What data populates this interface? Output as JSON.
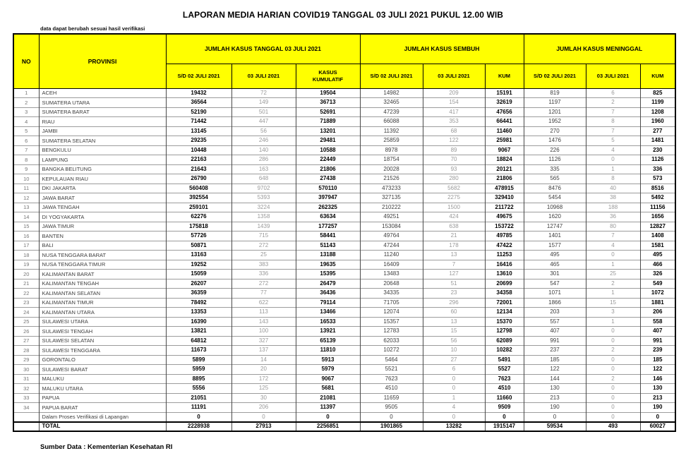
{
  "title": "LAPORAN MEDIA HARIAN COVID19 TANGGAL 03 JULI 2021 PUKUL 12.00 WIB",
  "note": "data dapat berubah sesuai hasil verifikasi",
  "source": "Sumber Data : Kementerian Kesehatan RI",
  "colors": {
    "header_bg": "#FFFF00",
    "border": "#000000",
    "day_text": "#999999"
  },
  "table": {
    "header": {
      "no": "NO",
      "provinsi": "PROVINSI",
      "group_kasus": "JUMLAH KASUS TANGGAL 03 JULI 2021",
      "group_sembuh": "JUMLAH KASUS SEMBUH",
      "group_meninggal": "JUMLAH KASUS MENINGGAL",
      "sub_sd": "S/D 02 JULI 2021",
      "sub_03": "03 JULI 2021",
      "sub_kum_kasus": "KASUS KUMULATIF",
      "sub_kum": "KUM"
    },
    "rows": [
      [
        1,
        "ACEH",
        19432,
        72,
        19504,
        14982,
        209,
        15191,
        819,
        6,
        825
      ],
      [
        2,
        "SUMATERA UTARA",
        36564,
        149,
        36713,
        32465,
        154,
        32619,
        1197,
        2,
        1199
      ],
      [
        3,
        "SUMATERA BARAT",
        52190,
        501,
        52691,
        47239,
        417,
        47656,
        1201,
        7,
        1208
      ],
      [
        4,
        "RIAU",
        71442,
        447,
        71889,
        66088,
        353,
        66441,
        1952,
        8,
        1960
      ],
      [
        5,
        "JAMBI",
        13145,
        56,
        13201,
        11392,
        68,
        11460,
        270,
        7,
        277
      ],
      [
        6,
        "SUMATERA SELATAN",
        29235,
        246,
        29481,
        25859,
        122,
        25981,
        1476,
        5,
        1481
      ],
      [
        7,
        "BENGKULU",
        10448,
        140,
        10588,
        8978,
        89,
        9067,
        226,
        4,
        230
      ],
      [
        8,
        "LAMPUNG",
        22163,
        286,
        22449,
        18754,
        70,
        18824,
        1126,
        0,
        1126
      ],
      [
        9,
        "BANGKA BELITUNG",
        21643,
        163,
        21806,
        20028,
        93,
        20121,
        335,
        1,
        336
      ],
      [
        10,
        "KEPULAUAN RIAU",
        26790,
        648,
        27438,
        21526,
        280,
        21806,
        565,
        8,
        573
      ],
      [
        11,
        "DKI JAKARTA",
        560408,
        9702,
        570110,
        473233,
        5682,
        478915,
        8476,
        40,
        8516
      ],
      [
        12,
        "JAWA BARAT",
        392554,
        5393,
        397947,
        327135,
        2275,
        329410,
        5454,
        38,
        5492
      ],
      [
        13,
        "JAWA TENGAH",
        259101,
        3224,
        262325,
        210222,
        1500,
        211722,
        10968,
        188,
        11156
      ],
      [
        14,
        "DI YOGYAKARTA",
        62276,
        1358,
        63634,
        49251,
        424,
        49675,
        1620,
        36,
        1656
      ],
      [
        15,
        "JAWA TIMUR",
        175818,
        1439,
        177257,
        153084,
        638,
        153722,
        12747,
        80,
        12827
      ],
      [
        16,
        "BANTEN",
        57726,
        715,
        58441,
        49764,
        21,
        49785,
        1401,
        7,
        1408
      ],
      [
        17,
        "BALI",
        50871,
        272,
        51143,
        47244,
        178,
        47422,
        1577,
        4,
        1581
      ],
      [
        18,
        "NUSA TENGGARA BARAT",
        13163,
        25,
        13188,
        11240,
        13,
        11253,
        495,
        0,
        495
      ],
      [
        19,
        "NUSA TENGGARA TIMUR",
        19252,
        383,
        19635,
        16409,
        7,
        16416,
        465,
        1,
        466
      ],
      [
        20,
        "KALIMANTAN BARAT",
        15059,
        336,
        15395,
        13483,
        127,
        13610,
        301,
        25,
        326
      ],
      [
        21,
        "KALIMANTAN TENGAH",
        26207,
        272,
        26479,
        20648,
        51,
        20699,
        547,
        2,
        549
      ],
      [
        22,
        "KALIMANTAN SELATAN",
        36359,
        77,
        36436,
        34335,
        23,
        34358,
        1071,
        1,
        1072
      ],
      [
        23,
        "KALIMANTAN TIMUR",
        78492,
        622,
        79114,
        71705,
        296,
        72001,
        1866,
        15,
        1881
      ],
      [
        24,
        "KALIMANTAN UTARA",
        13353,
        113,
        13466,
        12074,
        60,
        12134,
        203,
        3,
        206
      ],
      [
        25,
        "SULAWESI UTARA",
        16390,
        143,
        16533,
        15357,
        13,
        15370,
        557,
        1,
        558
      ],
      [
        26,
        "SULAWESI TENGAH",
        13821,
        100,
        13921,
        12783,
        15,
        12798,
        407,
        0,
        407
      ],
      [
        27,
        "SULAWESI SELATAN",
        64812,
        327,
        65139,
        62033,
        56,
        62089,
        991,
        0,
        991
      ],
      [
        28,
        "SULAWESI TENGGARA",
        11673,
        137,
        11810,
        10272,
        10,
        10282,
        237,
        2,
        239
      ],
      [
        29,
        "GORONTALO",
        5899,
        14,
        5913,
        5464,
        27,
        5491,
        185,
        0,
        185
      ],
      [
        30,
        "SULAWESI BARAT",
        5959,
        20,
        5979,
        5521,
        6,
        5527,
        122,
        0,
        122
      ],
      [
        31,
        "MALUKU",
        8895,
        172,
        9067,
        7623,
        0,
        7623,
        144,
        2,
        146
      ],
      [
        32,
        "MALUKU UTARA",
        5556,
        125,
        5681,
        4510,
        0,
        4510,
        130,
        0,
        130
      ],
      [
        33,
        "PAPUA",
        21051,
        30,
        21081,
        11659,
        1,
        11660,
        213,
        0,
        213
      ],
      [
        34,
        "PAPUA BARAT",
        11191,
        206,
        11397,
        9505,
        4,
        9509,
        190,
        0,
        190
      ]
    ],
    "verification_row": [
      "",
      "Dalam Proses Verifikasi di Lapangan",
      0,
      0,
      0,
      0,
      0,
      0,
      0,
      0,
      0
    ],
    "total_row": [
      "",
      "TOTAL",
      2228938,
      27913,
      2256851,
      1901865,
      13282,
      1915147,
      59534,
      493,
      60027
    ]
  }
}
